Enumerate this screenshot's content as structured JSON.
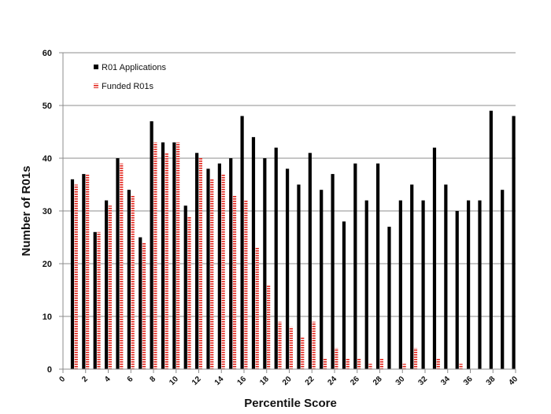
{
  "chart_data": {
    "type": "bar",
    "title": "",
    "xlabel": "Percentile Score",
    "ylabel": "Number of R01s",
    "ylim": [
      0,
      60
    ],
    "yticks": [
      0,
      10,
      20,
      30,
      40,
      50,
      60
    ],
    "xlim": [
      0,
      40
    ],
    "xticks": [
      0,
      2,
      4,
      6,
      8,
      10,
      12,
      14,
      16,
      18,
      20,
      22,
      24,
      26,
      28,
      30,
      32,
      34,
      36,
      38,
      40
    ],
    "categories": [
      1,
      2,
      3,
      4,
      5,
      6,
      7,
      8,
      9,
      10,
      11,
      12,
      13,
      14,
      15,
      16,
      17,
      18,
      19,
      20,
      21,
      22,
      23,
      24,
      25,
      26,
      27,
      28,
      29,
      30,
      31,
      32,
      33,
      34,
      35,
      36,
      37,
      38,
      39,
      40
    ],
    "grid": true,
    "legend_position": "top-left",
    "colors": {
      "applications": "#000000",
      "funded": "#e2231a"
    },
    "series": [
      {
        "name": "R01 Applications",
        "values": [
          36,
          37,
          26,
          32,
          40,
          34,
          25,
          47,
          43,
          43,
          31,
          41,
          38,
          39,
          40,
          48,
          44,
          40,
          42,
          38,
          35,
          41,
          34,
          37,
          28,
          39,
          32,
          39,
          27,
          32,
          35,
          32,
          42,
          35,
          30,
          32,
          32,
          49,
          34,
          48
        ]
      },
      {
        "name": "Funded R01s",
        "values": [
          35,
          37,
          26,
          31,
          39,
          33,
          24,
          43,
          41,
          43,
          29,
          40,
          36,
          37,
          33,
          32,
          23,
          16,
          9,
          8,
          6,
          9,
          2,
          4,
          2,
          2,
          1,
          2,
          0,
          1,
          4,
          0,
          2,
          0,
          1,
          0,
          0,
          0,
          0,
          0
        ]
      }
    ]
  }
}
